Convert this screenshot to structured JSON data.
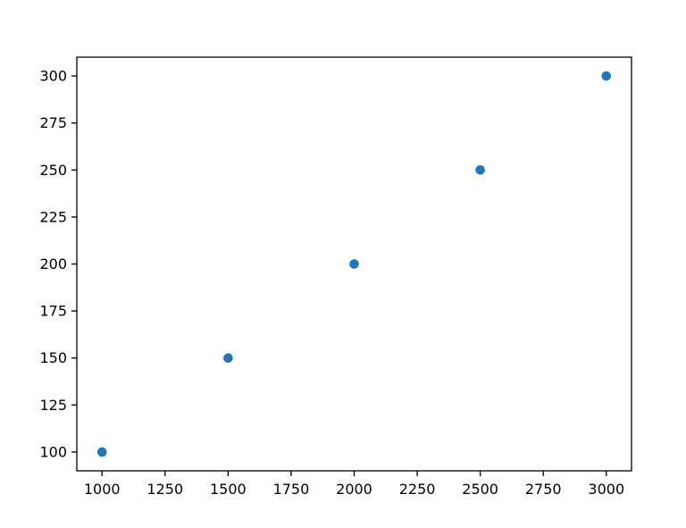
{
  "chart_data": {
    "type": "scatter",
    "title": "",
    "xlabel": "",
    "ylabel": "",
    "x": [
      1000,
      1500,
      2000,
      2500,
      3000
    ],
    "y": [
      100,
      150,
      200,
      250,
      300
    ],
    "series": [
      {
        "name": "",
        "points": [
          {
            "x": 1000,
            "y": 100
          },
          {
            "x": 1500,
            "y": 150
          },
          {
            "x": 2000,
            "y": 200
          },
          {
            "x": 2500,
            "y": 250
          },
          {
            "x": 3000,
            "y": 300
          }
        ]
      }
    ],
    "xlim": [
      900,
      3100
    ],
    "ylim": [
      90,
      310
    ],
    "xticks": [
      "1000",
      "1250",
      "1500",
      "1750",
      "2000",
      "2250",
      "2500",
      "2750",
      "3000"
    ],
    "yticks": [
      "100",
      "125",
      "150",
      "175",
      "200",
      "225",
      "250",
      "275",
      "300"
    ],
    "xtick_values": [
      1000,
      1250,
      1500,
      1750,
      2000,
      2250,
      2500,
      2750,
      3000
    ],
    "ytick_values": [
      100,
      125,
      150,
      175,
      200,
      225,
      250,
      275,
      300
    ],
    "grid": false,
    "legend_position": "none",
    "marker_color": "#1f77b4",
    "axes_color": "#000000",
    "background_color": "#ffffff"
  }
}
